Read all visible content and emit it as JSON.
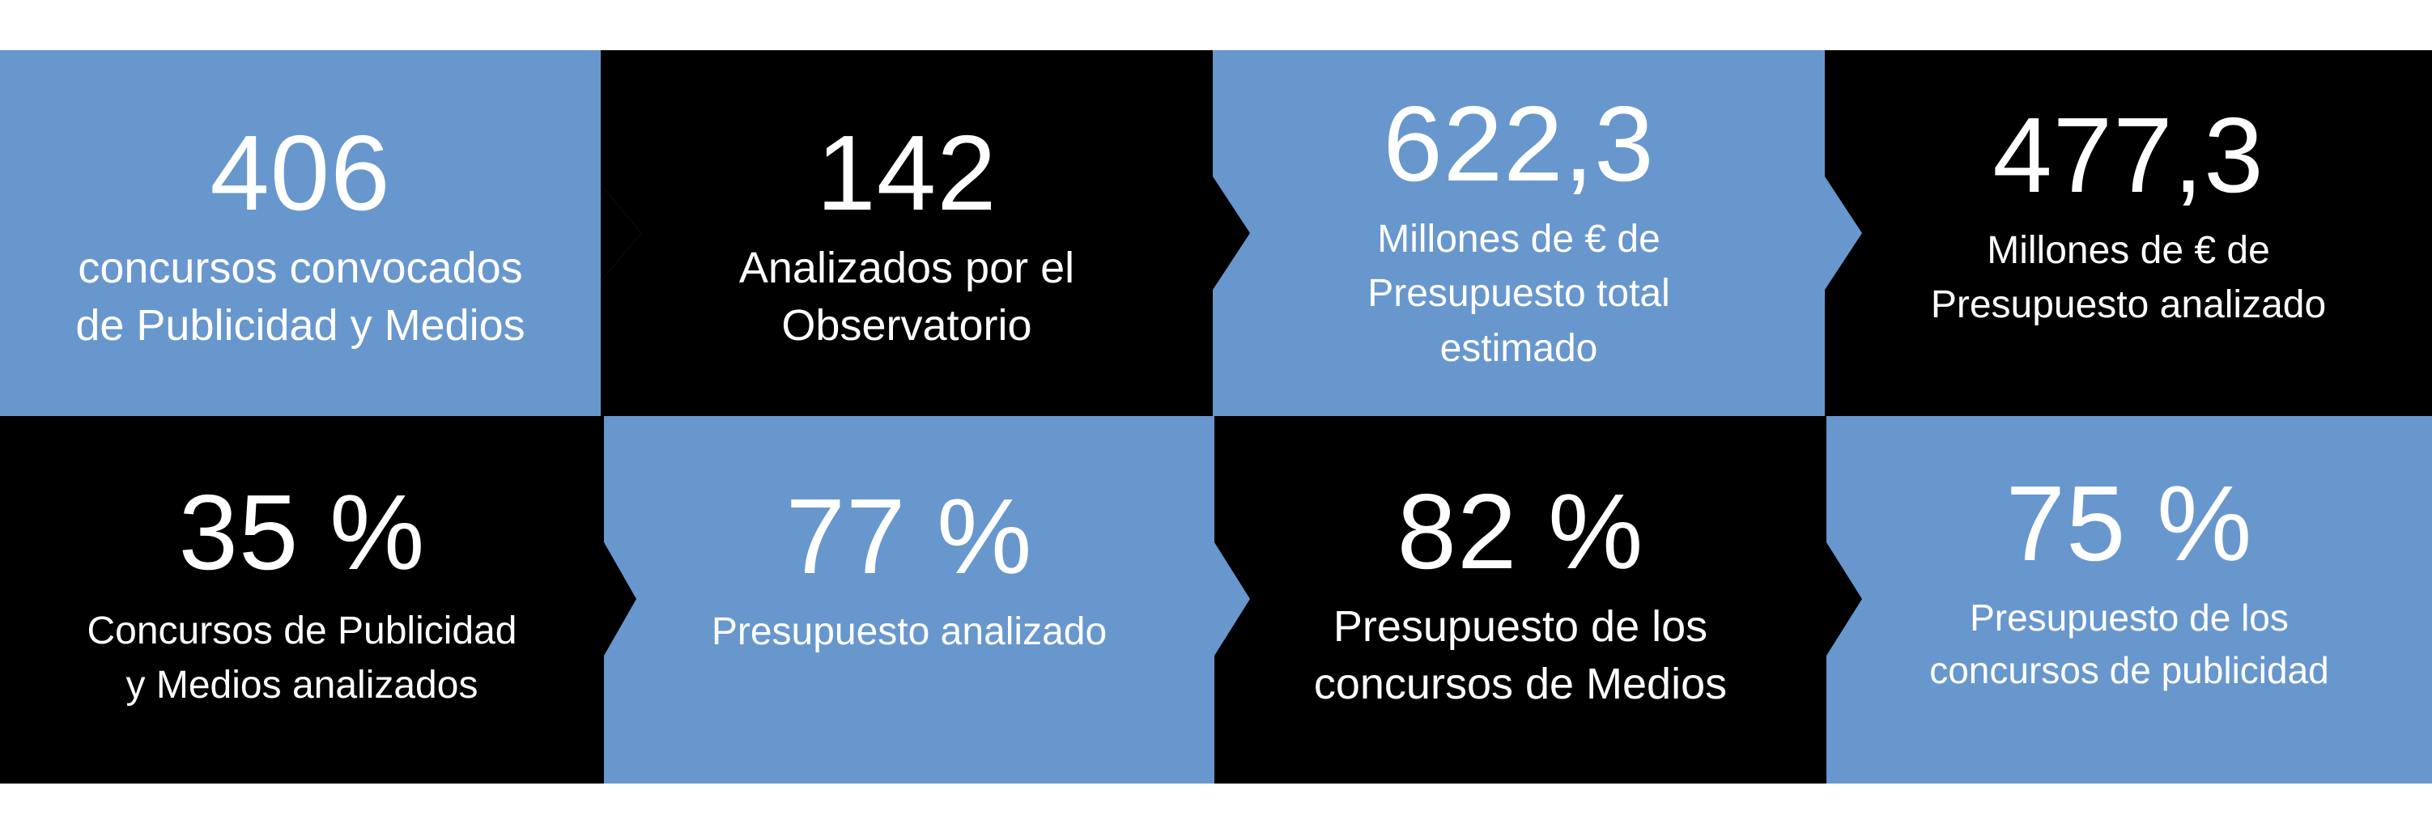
{
  "colors": {
    "blue": "#6897cd",
    "black": "#000000",
    "text": "#ffffff",
    "background": "#ffffff"
  },
  "row1": [
    {
      "value": "406",
      "label": [
        "concursos convocados",
        "de Publicidad y Medios"
      ]
    },
    {
      "value": "142",
      "label": [
        "Analizados por el",
        "Observatorio"
      ]
    },
    {
      "value": "622,3",
      "label": [
        "Millones de € de",
        "Presupuesto total",
        "estimado"
      ]
    },
    {
      "value": "477,3",
      "label": [
        "Millones de € de",
        "Presupuesto analizado"
      ]
    }
  ],
  "row2": [
    {
      "value": "35 %",
      "label": [
        "Concursos de Publicidad",
        "y Medios analizados"
      ]
    },
    {
      "value": "77 %",
      "label": [
        "Presupuesto analizado"
      ]
    },
    {
      "value": "82 %",
      "label": [
        "Presupuesto de los",
        "concursos de Medios"
      ]
    },
    {
      "value": "75 %",
      "label": [
        "Presupuesto de los",
        "concursos de publicidad"
      ]
    }
  ]
}
